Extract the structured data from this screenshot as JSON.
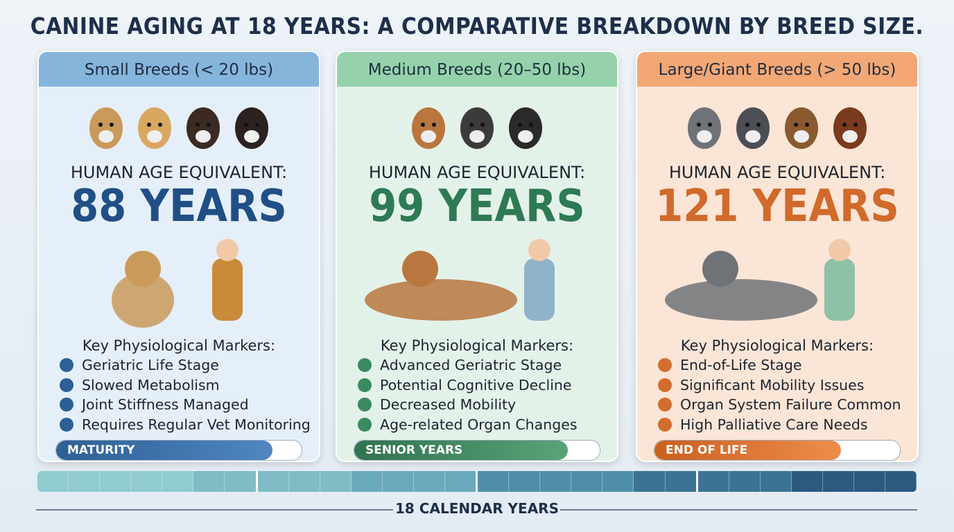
{
  "title": "CANINE AGING AT 18 YEARS: A COMPARATIVE BREAKDOWN BY BREED SIZE.",
  "cards": [
    {
      "header": "Small Breeds (< 20 lbs)",
      "age_label": "HUMAN AGE EQUIVALENT:",
      "age_value": "88 YEARS",
      "markers_title": "Key Physiological Markers:",
      "markers": [
        "Geriatric Life Stage",
        "Slowed Metabolism",
        "Joint Stiffness Managed",
        "Requires Regular Vet Monitoring"
      ],
      "stage": "MATURITY"
    },
    {
      "header": "Medium Breeds (20–50 lbs)",
      "age_label": "HUMAN AGE EQUIVALENT:",
      "age_value": "99 YEARS",
      "markers_title": "Key Physiological Markers:",
      "markers": [
        "Advanced Geriatric Stage",
        "Potential Cognitive Decline",
        "Decreased Mobility",
        "Age-related Organ Changes"
      ],
      "stage": "SENIOR YEARS"
    },
    {
      "header": "Large/Giant Breeds (> 50 lbs)",
      "age_label": "HUMAN AGE EQUIVALENT:",
      "age_value": "121 YEARS",
      "markers_title": "Key Physiological Markers:",
      "markers": [
        "End-of-Life Stage",
        "Significant Mobility Issues",
        "Organ System Failure Common",
        "High Palliative Care Needs"
      ],
      "stage": "END OF LIFE"
    }
  ],
  "footer": "18 CALENDAR YEARS"
}
